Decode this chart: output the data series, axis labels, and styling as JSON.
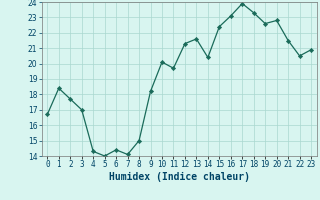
{
  "x": [
    0,
    1,
    2,
    3,
    4,
    5,
    6,
    7,
    8,
    9,
    10,
    11,
    12,
    13,
    14,
    15,
    16,
    17,
    18,
    19,
    20,
    21,
    22,
    23
  ],
  "y": [
    16.7,
    18.4,
    17.7,
    17.0,
    14.3,
    14.0,
    14.4,
    14.1,
    15.0,
    18.2,
    20.1,
    19.7,
    21.3,
    21.6,
    20.4,
    22.4,
    23.1,
    23.9,
    23.3,
    22.6,
    22.8,
    21.5,
    20.5,
    20.9
  ],
  "xlabel": "Humidex (Indice chaleur)",
  "ylim": [
    14,
    24
  ],
  "xlim": [
    -0.5,
    23.5
  ],
  "yticks": [
    14,
    15,
    16,
    17,
    18,
    19,
    20,
    21,
    22,
    23,
    24
  ],
  "xtick_labels": [
    "0",
    "1",
    "2",
    "3",
    "4",
    "5",
    "6",
    "7",
    "8",
    "9",
    "10",
    "11",
    "12",
    "13",
    "14",
    "15",
    "16",
    "17",
    "18",
    "19",
    "20",
    "21",
    "22",
    "23"
  ],
  "line_color": "#1a6b5a",
  "marker_color": "#1a6b5a",
  "bg_color": "#d8f5f0",
  "grid_color": "#aad8cf",
  "xlabel_color": "#004466",
  "tick_color": "#004466",
  "tick_fontsize": 5.5,
  "xlabel_fontsize": 7.0,
  "linewidth": 0.9,
  "markersize": 2.2
}
